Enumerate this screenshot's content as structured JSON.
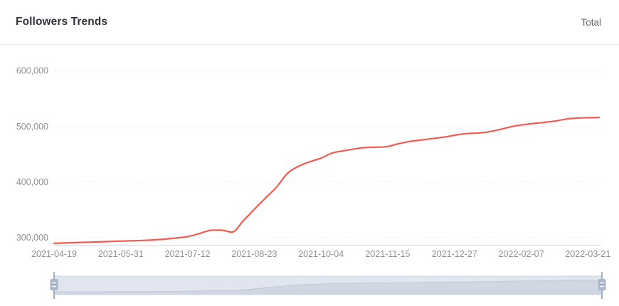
{
  "header": {
    "title": "Followers Trends",
    "right_label": "Total"
  },
  "colors": {
    "line": "#f15b50",
    "grid": "#e3e3e3",
    "axis_line": "#d2d4d7",
    "axis_text": "#8e9196",
    "title_text": "#2f343b",
    "divider": "#e8eaed",
    "slider_track": "#e0e5ef",
    "slider_area": "#d0d7e3",
    "slider_line": "#c0cad9",
    "slider_border": "#ccd4e1",
    "slider_handle": "#a8b6ca",
    "slider_handle_stem": "#9fafc5"
  },
  "chart_data": {
    "type": "line",
    "title": "Followers Trends",
    "legend": [
      "Total"
    ],
    "legend_position": "top-right",
    "grid": "horizontal dotted",
    "has_range_slider": true,
    "range_slider_selection": "full",
    "xlabel": "",
    "ylabel": "",
    "y_ticks": {
      "values": [
        300000,
        400000,
        500000,
        600000
      ],
      "labels": [
        "300,000",
        "400,000",
        "500,000",
        "600,000"
      ]
    },
    "ylim_approx": [
      286000,
      615000
    ],
    "x_tick_labels": [
      "2021-04-19",
      "2021-05-31",
      "2021-07-12",
      "2021-08-23",
      "2021-10-04",
      "2021-11-15",
      "2021-12-27",
      "2022-02-07",
      "2022-03-21"
    ],
    "series": [
      {
        "name": "Total",
        "x": [
          "2021-04-19",
          "2021-04-26",
          "2021-05-03",
          "2021-05-10",
          "2021-05-17",
          "2021-05-24",
          "2021-05-31",
          "2021-06-07",
          "2021-06-14",
          "2021-06-21",
          "2021-06-28",
          "2021-07-05",
          "2021-07-12",
          "2021-07-19",
          "2021-07-26",
          "2021-08-02",
          "2021-08-09",
          "2021-08-16",
          "2021-08-23",
          "2021-08-30",
          "2021-09-06",
          "2021-09-13",
          "2021-09-20",
          "2021-09-27",
          "2021-10-04",
          "2021-10-11",
          "2021-10-18",
          "2021-10-25",
          "2021-11-01",
          "2021-11-08",
          "2021-11-15",
          "2021-11-22",
          "2021-11-29",
          "2021-12-06",
          "2021-12-13",
          "2021-12-20",
          "2021-12-27",
          "2022-01-03",
          "2022-01-10",
          "2022-01-17",
          "2022-01-24",
          "2022-01-31",
          "2022-02-07",
          "2022-02-14",
          "2022-02-21",
          "2022-02-28",
          "2022-03-07",
          "2022-03-14",
          "2022-03-21",
          "2022-03-28"
        ],
        "values": [
          290000,
          290600,
          291200,
          291800,
          292400,
          293200,
          293800,
          294500,
          295200,
          296000,
          297500,
          299500,
          302000,
          307000,
          313000,
          313500,
          310000,
          330000,
          351000,
          371000,
          391000,
          416000,
          428500,
          436500,
          443000,
          452000,
          456000,
          459500,
          462000,
          462500,
          464000,
          469000,
          473000,
          475500,
          478000,
          480500,
          484000,
          487000,
          488000,
          490000,
          494000,
          499000,
          502500,
          505000,
          507000,
          509500,
          513000,
          515000,
          515500,
          516000
        ]
      }
    ]
  }
}
